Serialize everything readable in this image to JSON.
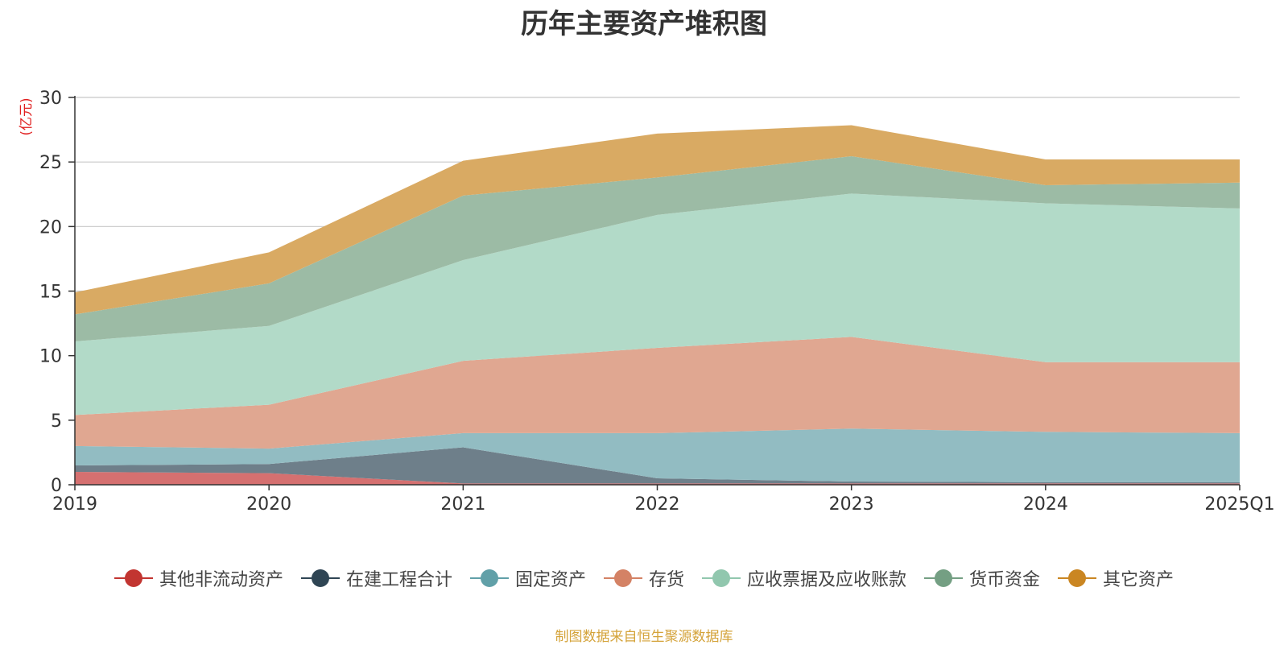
{
  "chart_data": {
    "type": "area",
    "stacked": true,
    "title": "历年主要资产堆积图",
    "ylabel": "(亿元)",
    "xlabel": "",
    "categories": [
      "2019",
      "2020",
      "2021",
      "2022",
      "2023",
      "2024",
      "2025Q1"
    ],
    "ylim": [
      0,
      30
    ],
    "yticks": [
      "0",
      "5",
      "10",
      "15",
      "20",
      "25",
      "30"
    ],
    "grid": true,
    "legend_position": "bottom",
    "series": [
      {
        "name": "其他非流动资产",
        "color": "#c23531",
        "fill": "#d57070",
        "values": [
          1.0,
          0.9,
          0.1,
          0.1,
          0.1,
          0.1,
          0.1
        ]
      },
      {
        "name": "在建工程合计",
        "color": "#2f4554",
        "fill": "#6e7f8a",
        "values": [
          0.5,
          0.7,
          2.8,
          0.4,
          0.15,
          0.1,
          0.1
        ]
      },
      {
        "name": "固定资产",
        "color": "#61a0a8",
        "fill": "#92bcc2",
        "values": [
          1.5,
          1.2,
          1.1,
          3.5,
          4.1,
          3.9,
          3.8
        ]
      },
      {
        "name": "存货",
        "color": "#d48265",
        "fill": "#e0a791",
        "values": [
          2.4,
          3.4,
          5.6,
          6.6,
          7.1,
          5.4,
          5.5
        ]
      },
      {
        "name": "应收票据及应收账款",
        "color": "#91c7ae",
        "fill": "#b2dac8",
        "values": [
          5.7,
          6.1,
          7.8,
          10.3,
          11.1,
          12.3,
          11.9
        ]
      },
      {
        "name": "货币资金",
        "color": "#749f83",
        "fill": "#9cbba5",
        "values": [
          2.1,
          3.3,
          5.0,
          2.9,
          2.9,
          1.4,
          2.0
        ]
      },
      {
        "name": "其它资产",
        "color": "#ca8622",
        "fill": "#d9aa63",
        "values": [
          1.7,
          2.4,
          2.7,
          3.4,
          2.4,
          2.0,
          1.8
        ]
      }
    ]
  },
  "footer": {
    "source": "制图数据来自恒生聚源数据库"
  }
}
